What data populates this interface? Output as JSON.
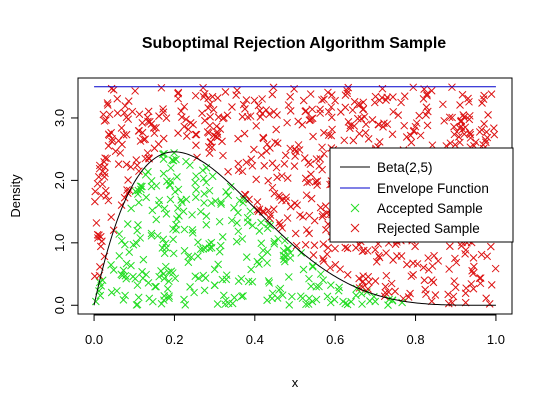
{
  "chart_data": {
    "type": "scatter",
    "title": "Suboptimal Rejection Algorithm Sample",
    "xlabel": "x",
    "ylabel": "Density",
    "xlim": [
      -0.04,
      1.04
    ],
    "ylim": [
      -0.14,
      3.64
    ],
    "x_ticks": [
      0.0,
      0.2,
      0.4,
      0.6,
      0.8,
      1.0
    ],
    "x_tick_labels": [
      "0.0",
      "0.2",
      "0.4",
      "0.6",
      "0.8",
      "1.0"
    ],
    "y_ticks": [
      0.0,
      1.0,
      2.0,
      3.0
    ],
    "y_tick_labels": [
      "0.0",
      "1.0",
      "2.0",
      "3.0"
    ],
    "grid": false,
    "legend_position": "right",
    "series": [
      {
        "name": "Beta(2,5)",
        "kind": "line",
        "color": "#000000",
        "function": "beta(2,5) density: 30*x*(1-x)^4"
      },
      {
        "name": "Envelope Function",
        "kind": "line",
        "color": "#0000cc",
        "y_constant": 3.5
      },
      {
        "name": "Accepted Sample",
        "kind": "points",
        "color": "#22dd22",
        "marker": "x",
        "approx_count": 360
      },
      {
        "name": "Rejected Sample",
        "kind": "points",
        "color": "#dd1111",
        "marker": "x",
        "approx_count": 640
      }
    ]
  }
}
